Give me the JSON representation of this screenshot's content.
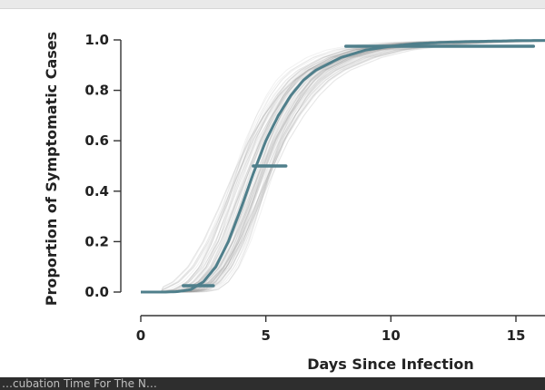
{
  "chart_data": {
    "type": "line",
    "title": "",
    "xlabel": "Days Since Infection",
    "ylabel": "Proportion of Symptomatic Cases",
    "xlim": [
      0,
      16
    ],
    "ylim": [
      0,
      1
    ],
    "xticks": [
      "0",
      "5",
      "10",
      "15"
    ],
    "yticks": [
      "0.0",
      "0.2",
      "0.4",
      "0.6",
      "0.8",
      "1.0"
    ],
    "grid": false,
    "series": [
      {
        "role": "central estimate (cumulative incubation distribution)",
        "color": "#4f7f8b",
        "x": [
          0,
          1,
          1.5,
          2,
          2.5,
          3,
          3.5,
          4,
          4.5,
          5,
          5.5,
          6,
          6.5,
          7,
          8,
          9,
          10,
          11,
          12,
          13,
          14,
          15,
          16
        ],
        "y": [
          0.0,
          0.0,
          0.002,
          0.01,
          0.04,
          0.1,
          0.2,
          0.33,
          0.47,
          0.6,
          0.7,
          0.78,
          0.84,
          0.88,
          0.93,
          0.96,
          0.975,
          0.985,
          0.99,
          0.993,
          0.995,
          0.997,
          0.998
        ]
      }
    ],
    "uncertainty_band": {
      "description": "many faint gray bootstrap curves",
      "color": "#9a9a9a"
    },
    "percentile_markers": [
      {
        "percentile": 2.5,
        "y": 0.025,
        "x_from": 1.7,
        "x_to": 2.9
      },
      {
        "percentile": 50,
        "y": 0.5,
        "x_from": 4.5,
        "x_to": 5.8
      },
      {
        "percentile": 97.5,
        "y": 0.975,
        "x_from": 8.2,
        "x_to": 15.7
      }
    ]
  },
  "bottom_bar_text": "…cubation Time For The N…"
}
